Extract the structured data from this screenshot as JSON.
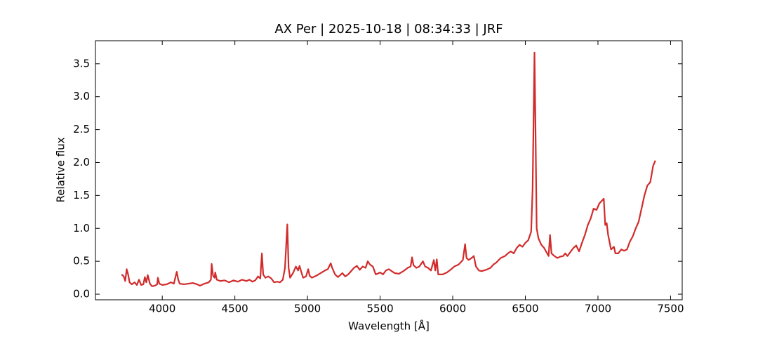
{
  "chart_data": {
    "type": "line",
    "title": "AX Per | 2025-10-18 | 08:34:33 | JRF",
    "x_label": "Wavelength [Å]",
    "y_label": "Relative flux",
    "xlim": [
      3540,
      7580
    ],
    "ylim": [
      -0.085,
      3.85
    ],
    "xticks": [
      4000,
      4500,
      5000,
      5500,
      6000,
      6500,
      7000,
      7500
    ],
    "yticks": [
      {
        "value": 0,
        "label": "0.0"
      },
      0.5,
      {
        "value": 1,
        "label": "1.0"
      },
      1.5,
      {
        "value": 2,
        "label": "2.0"
      },
      2.5,
      {
        "value": 3,
        "label": "3.0"
      },
      3.5
    ],
    "grid": false,
    "series": [
      {
        "color": "#d22b2b",
        "x": [
          3720,
          3735,
          3745,
          3755,
          3765,
          3775,
          3790,
          3810,
          3825,
          3840,
          3855,
          3870,
          3880,
          3890,
          3900,
          3915,
          3930,
          3950,
          3965,
          3970,
          3980,
          4000,
          4030,
          4060,
          4080,
          4100,
          4110,
          4120,
          4150,
          4180,
          4210,
          4240,
          4260,
          4290,
          4320,
          4335,
          4340,
          4350,
          4360,
          4365,
          4375,
          4400,
          4430,
          4460,
          4490,
          4520,
          4550,
          4580,
          4600,
          4620,
          4640,
          4660,
          4675,
          4686,
          4695,
          4710,
          4730,
          4750,
          4770,
          4790,
          4810,
          4830,
          4845,
          4861,
          4870,
          4880,
          4900,
          4920,
          4935,
          4945,
          4960,
          4970,
          4990,
          5005,
          5015,
          5030,
          5060,
          5090,
          5120,
          5140,
          5160,
          5170,
          5190,
          5210,
          5240,
          5260,
          5280,
          5300,
          5320,
          5340,
          5360,
          5380,
          5400,
          5415,
          5430,
          5450,
          5470,
          5500,
          5520,
          5540,
          5560,
          5580,
          5600,
          5630,
          5660,
          5690,
          5710,
          5720,
          5730,
          5750,
          5770,
          5795,
          5810,
          5830,
          5850,
          5870,
          5880,
          5890,
          5900,
          5930,
          5960,
          5990,
          6010,
          6040,
          6070,
          6085,
          6095,
          6110,
          6130,
          6145,
          6160,
          6180,
          6200,
          6230,
          6260,
          6280,
          6300,
          6330,
          6360,
          6380,
          6400,
          6420,
          6440,
          6460,
          6480,
          6500,
          6520,
          6540,
          6550,
          6563,
          6570,
          6578,
          6590,
          6610,
          6630,
          6650,
          6660,
          6670,
          6680,
          6700,
          6720,
          6740,
          6760,
          6775,
          6790,
          6810,
          6830,
          6850,
          6870,
          6890,
          6910,
          6930,
          6950,
          6970,
          6990,
          7010,
          7040,
          7050,
          7060,
          7070,
          7090,
          7110,
          7120,
          7140,
          7160,
          7180,
          7200,
          7220,
          7240,
          7260,
          7280,
          7300,
          7320,
          7340,
          7360,
          7380,
          7395
        ],
        "values": [
          0.3,
          0.27,
          0.2,
          0.38,
          0.3,
          0.18,
          0.15,
          0.18,
          0.14,
          0.22,
          0.14,
          0.15,
          0.26,
          0.18,
          0.29,
          0.16,
          0.12,
          0.13,
          0.15,
          0.25,
          0.16,
          0.14,
          0.15,
          0.18,
          0.16,
          0.34,
          0.22,
          0.16,
          0.15,
          0.16,
          0.17,
          0.15,
          0.13,
          0.16,
          0.18,
          0.22,
          0.46,
          0.28,
          0.25,
          0.33,
          0.22,
          0.2,
          0.21,
          0.18,
          0.21,
          0.19,
          0.22,
          0.2,
          0.22,
          0.19,
          0.21,
          0.27,
          0.24,
          0.62,
          0.3,
          0.25,
          0.27,
          0.24,
          0.18,
          0.19,
          0.18,
          0.22,
          0.4,
          1.06,
          0.4,
          0.25,
          0.32,
          0.42,
          0.36,
          0.43,
          0.32,
          0.25,
          0.27,
          0.38,
          0.28,
          0.25,
          0.28,
          0.32,
          0.36,
          0.38,
          0.47,
          0.4,
          0.3,
          0.26,
          0.32,
          0.27,
          0.3,
          0.35,
          0.4,
          0.43,
          0.37,
          0.42,
          0.4,
          0.5,
          0.45,
          0.42,
          0.3,
          0.33,
          0.3,
          0.36,
          0.38,
          0.35,
          0.32,
          0.31,
          0.35,
          0.4,
          0.42,
          0.56,
          0.44,
          0.4,
          0.42,
          0.5,
          0.42,
          0.4,
          0.36,
          0.52,
          0.36,
          0.53,
          0.3,
          0.3,
          0.33,
          0.38,
          0.42,
          0.45,
          0.52,
          0.76,
          0.55,
          0.52,
          0.55,
          0.58,
          0.42,
          0.36,
          0.35,
          0.37,
          0.4,
          0.45,
          0.48,
          0.55,
          0.58,
          0.62,
          0.65,
          0.62,
          0.7,
          0.75,
          0.72,
          0.78,
          0.82,
          0.95,
          1.6,
          3.67,
          2.5,
          1.0,
          0.85,
          0.75,
          0.7,
          0.62,
          0.58,
          0.9,
          0.62,
          0.58,
          0.55,
          0.57,
          0.58,
          0.62,
          0.58,
          0.64,
          0.7,
          0.74,
          0.65,
          0.78,
          0.9,
          1.05,
          1.15,
          1.3,
          1.28,
          1.38,
          1.45,
          1.05,
          1.08,
          0.9,
          0.68,
          0.72,
          0.62,
          0.62,
          0.68,
          0.66,
          0.68,
          0.8,
          0.88,
          1.0,
          1.1,
          1.3,
          1.5,
          1.65,
          1.7,
          1.95,
          2.03
        ]
      }
    ]
  }
}
